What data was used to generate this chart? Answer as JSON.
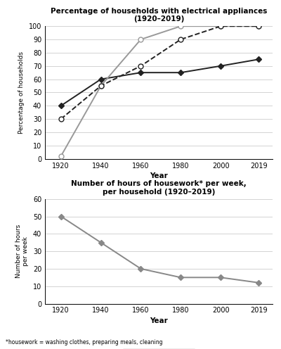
{
  "years": [
    1920,
    1940,
    1960,
    1980,
    2000,
    2019
  ],
  "washing_machine": [
    40,
    60,
    65,
    65,
    70,
    75
  ],
  "refrigerator": [
    2,
    55,
    90,
    100,
    100,
    100
  ],
  "vacuum_cleaner": [
    30,
    55,
    70,
    90,
    100,
    100
  ],
  "hours_per_week": [
    50,
    35,
    20,
    15,
    15,
    12
  ],
  "chart1_title": "Percentage of households with electrical appliances\n(1920–2019)",
  "chart1_ylabel": "Percentage of households",
  "chart1_xlabel": "Year",
  "chart1_ylim": [
    0,
    100
  ],
  "chart1_yticks": [
    0,
    10,
    20,
    30,
    40,
    50,
    60,
    70,
    80,
    90,
    100
  ],
  "chart2_title": "Number of hours of housework* per week,\nper household (1920–2019)",
  "chart2_ylabel": "Number of hours\nper week",
  "chart2_xlabel": "Year",
  "chart2_ylim": [
    0,
    60
  ],
  "chart2_yticks": [
    0,
    10,
    20,
    30,
    40,
    50,
    60
  ],
  "footnote": "*housework = washing clothes, preparing meals, cleaning",
  "line_color_wm": "#222222",
  "line_color_ref": "#999999",
  "line_color_vc": "#222222",
  "line_color_hours": "#888888",
  "xlim_left": 1912,
  "xlim_right": 2026
}
